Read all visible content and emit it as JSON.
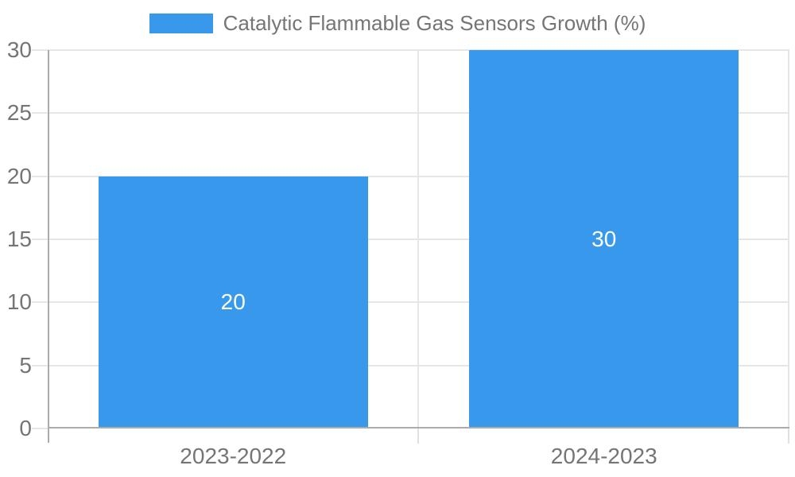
{
  "chart_data": {
    "type": "bar",
    "title": "Catalytic Flammable Gas Sensors Growth (%)",
    "categories": [
      "2023-2022",
      "2024-2023"
    ],
    "values": [
      20,
      30
    ],
    "data_labels": [
      "20",
      "30"
    ],
    "xlabel": "",
    "ylabel": "",
    "ylim": [
      0,
      30
    ],
    "yticks": [
      0,
      5,
      10,
      15,
      20,
      25,
      30
    ],
    "grid": true,
    "legend_position": "top",
    "bar_width_fraction": 0.727
  },
  "legend": {
    "label": "Catalytic Flammable Gas Sensors Growth (%)",
    "swatch_color": "#3899ec"
  },
  "colors": {
    "bar": "#3899ec",
    "data_label": "#ffffff",
    "axis_line": "#acacac",
    "gridline": "#e6e6e6",
    "tick_label": "#757575",
    "background": "#ffffff"
  }
}
